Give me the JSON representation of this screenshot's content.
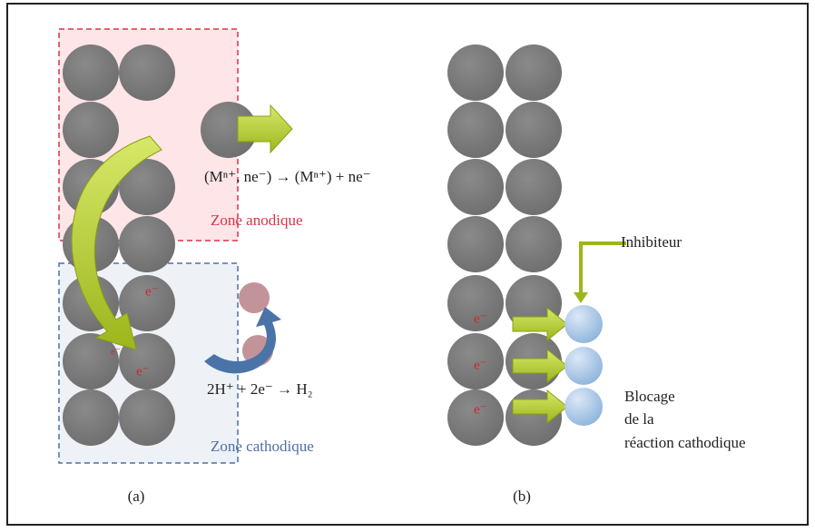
{
  "panel_a": {
    "equation_anode": "(Mⁿ⁺, ne⁻) → (Mⁿ⁺) + ne⁻",
    "zone_anode": "Zone anodique",
    "equation_cathode": "2H⁺ + 2e⁻ → H₂",
    "zone_cathode": "Zone cathodique",
    "electrons": [
      "e⁻",
      "e⁻",
      "e⁻"
    ],
    "label": "(a)"
  },
  "panel_b": {
    "inhibitor": "Inhibiteur",
    "blocking": [
      "Blocage",
      "de la",
      "réaction cathodique"
    ],
    "electrons": [
      "e⁻",
      "e⁻",
      "e⁻"
    ],
    "label": "(b)"
  }
}
